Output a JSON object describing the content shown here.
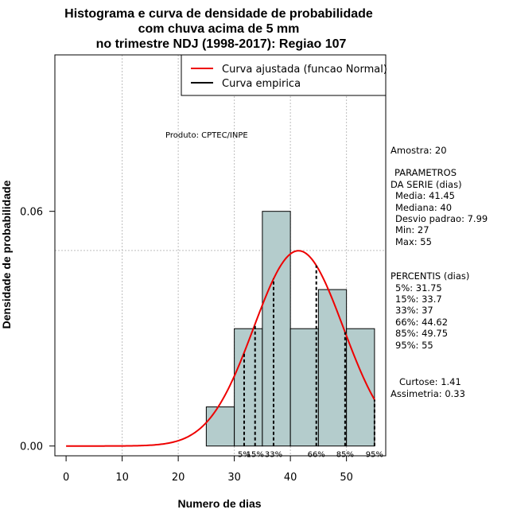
{
  "chart_data": {
    "type": "bar",
    "title_lines": [
      "Histograma e curva de densidade de probabilidade",
      "com chuva acima de 5 mm",
      "no trimestre NDJ (1998-2017): Regiao 107"
    ],
    "xlabel": "Numero de dias",
    "ylabel": "Densidade de probabilidade",
    "xlim": [
      -2,
      57
    ],
    "ylim": [
      -0.0025,
      0.1
    ],
    "x_ticks": [
      0,
      10,
      20,
      30,
      40,
      50
    ],
    "y_ticks": [
      0.0,
      0.06
    ],
    "y_tick_labels": [
      "0.00",
      "0.06"
    ],
    "x_gridlines": [
      10,
      20,
      30,
      40,
      50
    ],
    "y_gridlines": [
      0.05,
      0.1
    ],
    "grid": true,
    "bins": [
      {
        "start": 25,
        "end": 30,
        "density": 0.01
      },
      {
        "start": 30,
        "end": 35,
        "density": 0.03
      },
      {
        "start": 35,
        "end": 40,
        "density": 0.06
      },
      {
        "start": 40,
        "end": 45,
        "density": 0.03
      },
      {
        "start": 45,
        "end": 50,
        "density": 0.04
      },
      {
        "start": 50,
        "end": 55,
        "density": 0.03
      }
    ],
    "bar_color": "#b4cccc",
    "normal_fit": {
      "mean": 41.45,
      "sd": 7.99,
      "x_range": [
        0,
        55
      ],
      "color": "#ee0000"
    },
    "percentile_lines": [
      {
        "label": "5%",
        "x": 31.75
      },
      {
        "label": "15%",
        "x": 33.7
      },
      {
        "label": "33%",
        "x": 37
      },
      {
        "label": "66%",
        "x": 44.62
      },
      {
        "label": "85%",
        "x": 49.75
      },
      {
        "label": "95%",
        "x": 55
      }
    ],
    "legend": {
      "position": "top-right",
      "entries": [
        {
          "label": "Curva ajustada (funcao Normal)",
          "color": "#ee0000"
        },
        {
          "label": "Curva empirica",
          "color": "#000000"
        }
      ]
    },
    "annotation": "Produto: CPTEC/INPE"
  },
  "side_panel": {
    "amostra": "Amostra: 20",
    "parametros_title": [
      "PARAMETROS",
      "DA SERIE (dias)"
    ],
    "parametros": [
      "Media: 41.45",
      "Mediana: 40",
      "Desvio padrao: 7.99",
      "Min: 27",
      "Max: 55"
    ],
    "percentis_title": "PERCENTIS (dias)",
    "percentis": [
      "5%: 31.75",
      "15%: 33.7",
      "33%: 37",
      "66%: 44.62",
      "85%: 49.75",
      "95%: 55"
    ],
    "curtose": "Curtose: 1.41",
    "assimetria": "Assimetria: 0.33"
  }
}
